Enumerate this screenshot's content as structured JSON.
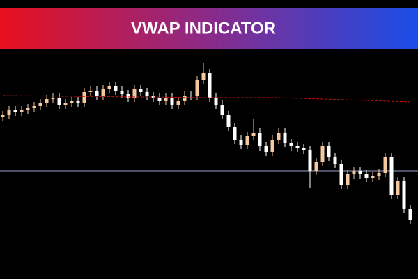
{
  "chart_data": {
    "type": "candlestick",
    "title": "VWAP INDICATOR",
    "ylim": [
      0,
      330
    ],
    "up_color": "#f3c9a0",
    "down_color": "#ffffff",
    "open": [
      232,
      235,
      242,
      240,
      242,
      245,
      248,
      252,
      258,
      260,
      250,
      252,
      255,
      252,
      268,
      270,
      262,
      272,
      276,
      270,
      265,
      260,
      272,
      268,
      262,
      260,
      255,
      260,
      250,
      255,
      263,
      262,
      285,
      295,
      260,
      250,
      235,
      218,
      200,
      192,
      205,
      210,
      190,
      182,
      200,
      210,
      195,
      190,
      188,
      185,
      155,
      168,
      190,
      175,
      165,
      135,
      150,
      155,
      150,
      145,
      148,
      152,
      175,
      120,
      140,
      100
    ],
    "high": [
      241,
      248,
      248,
      248,
      251,
      254,
      258,
      264,
      266,
      266,
      258,
      261,
      261,
      274,
      276,
      276,
      278,
      282,
      282,
      276,
      271,
      278,
      278,
      274,
      268,
      266,
      266,
      266,
      261,
      269,
      269,
      291,
      310,
      301,
      266,
      256,
      241,
      224,
      206,
      211,
      230,
      216,
      196,
      206,
      216,
      216,
      201,
      196,
      194,
      191,
      174,
      196,
      196,
      181,
      171,
      156,
      161,
      161,
      156,
      154,
      158,
      181,
      181,
      146,
      146,
      106
    ],
    "low": [
      226,
      229,
      234,
      234,
      236,
      239,
      242,
      246,
      252,
      244,
      244,
      246,
      246,
      246,
      262,
      256,
      256,
      266,
      264,
      259,
      254,
      254,
      262,
      256,
      254,
      249,
      249,
      244,
      244,
      249,
      256,
      256,
      279,
      254,
      244,
      229,
      212,
      194,
      186,
      186,
      199,
      184,
      176,
      176,
      194,
      189,
      184,
      182,
      179,
      130,
      149,
      162,
      169,
      159,
      129,
      129,
      144,
      144,
      139,
      139,
      142,
      146,
      114,
      114,
      94,
      79
    ],
    "close": [
      235,
      242,
      240,
      242,
      245,
      248,
      252,
      258,
      260,
      250,
      252,
      255,
      252,
      268,
      270,
      262,
      272,
      276,
      270,
      265,
      260,
      272,
      268,
      262,
      260,
      255,
      260,
      250,
      255,
      263,
      262,
      285,
      295,
      260,
      250,
      235,
      218,
      200,
      192,
      205,
      210,
      190,
      182,
      200,
      210,
      195,
      190,
      188,
      185,
      155,
      168,
      190,
      175,
      165,
      135,
      150,
      155,
      150,
      145,
      148,
      152,
      175,
      120,
      140,
      100,
      85
    ],
    "vwap": {
      "color": "#c01010",
      "x": [
        0,
        33,
        44,
        65
      ],
      "values": [
        263,
        260,
        260,
        254
      ]
    },
    "hline": {
      "color": "#9aa0c0",
      "value": 155
    }
  }
}
